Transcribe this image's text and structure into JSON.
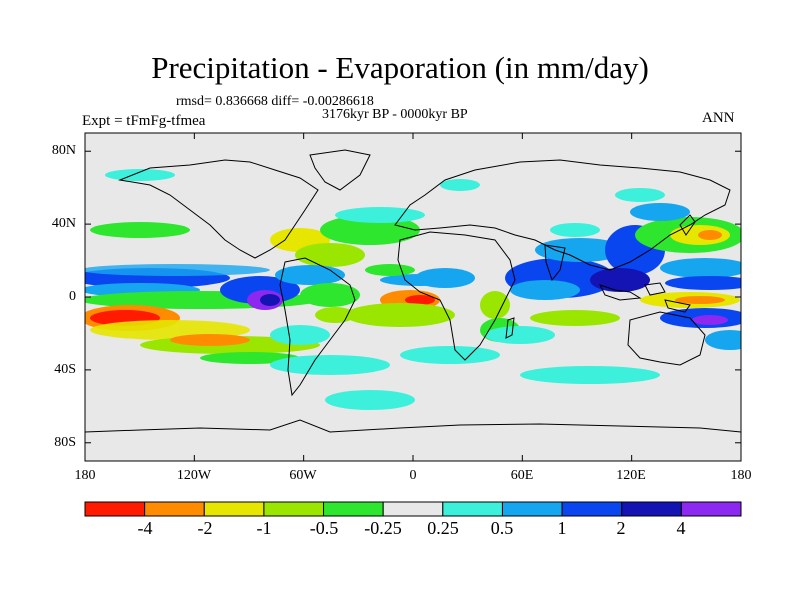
{
  "figure": {
    "title": "Precipitation - Evaporation (in mm/day)",
    "stats": "rmsd= 0.836668 diff= -0.00286618",
    "period": "3176kyr BP - 0000kyr BP",
    "experiment": "Expt = tFmFg-tfmea",
    "season": "ANN"
  },
  "axes": {
    "y_labels": [
      "80N",
      "40N",
      "0",
      "40S",
      "80S"
    ],
    "y_values": [
      80,
      40,
      0,
      -40,
      -80
    ],
    "x_labels": [
      "180",
      "120W",
      "60W",
      "0",
      "60E",
      "120E",
      "180"
    ],
    "x_values": [
      -180,
      -120,
      -60,
      0,
      60,
      120,
      180
    ],
    "lon_range": [
      -180,
      180
    ],
    "lat_range": [
      -90,
      90
    ]
  },
  "colorbar": {
    "labels": [
      "-4",
      "-2",
      "-1",
      "-0.5",
      "-0.25",
      "0.25",
      "0.5",
      "1",
      "2",
      "4"
    ],
    "colors": [
      "#ff1a00",
      "#ff8c00",
      "#e6e600",
      "#9be600",
      "#2ee62e",
      "#e8e8e8",
      "#3cf0dc",
      "#16a6f0",
      "#0a46f0",
      "#1414b4",
      "#8c28f0"
    ]
  },
  "colors": {
    "land_outline": "#000000",
    "neutral": "#e8e8e8"
  }
}
